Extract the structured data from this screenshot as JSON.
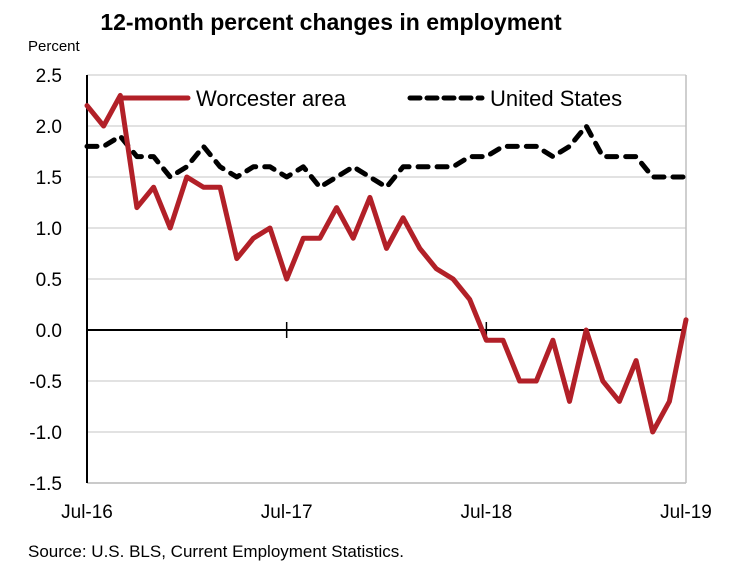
{
  "chart_data": {
    "type": "line",
    "title": "12-month percent changes in employment",
    "ylabel": "Percent",
    "xlabel": "",
    "ylim": [
      -1.5,
      2.5
    ],
    "yticks": [
      2.5,
      2.0,
      1.5,
      1.0,
      0.5,
      0.0,
      -0.5,
      -1.0,
      -1.5
    ],
    "ytick_labels": [
      "2.5",
      "2.0",
      "1.5",
      "1.0",
      "0.5",
      "0.0",
      "-0.5",
      "-1.0",
      "-1.5"
    ],
    "xtick_labels": [
      "Jul-16",
      "Jul-17",
      "Jul-18",
      "Jul-19"
    ],
    "grid": true,
    "legend_position": "top",
    "source": "Source: U.S. BLS, Current Employment Statistics.",
    "x": [
      "Jul-16",
      "Aug-16",
      "Sep-16",
      "Oct-16",
      "Nov-16",
      "Dec-16",
      "Jan-17",
      "Feb-17",
      "Mar-17",
      "Apr-17",
      "May-17",
      "Jun-17",
      "Jul-17",
      "Aug-17",
      "Sep-17",
      "Oct-17",
      "Nov-17",
      "Dec-17",
      "Jan-18",
      "Feb-18",
      "Mar-18",
      "Apr-18",
      "May-18",
      "Jun-18",
      "Jul-18",
      "Aug-18",
      "Sep-18",
      "Oct-18",
      "Nov-18",
      "Dec-18",
      "Jan-19",
      "Feb-19",
      "Mar-19",
      "Apr-19",
      "May-19",
      "Jun-19",
      "Jul-19"
    ],
    "series": [
      {
        "name": "Worcester area",
        "color": "#B22028",
        "style": "solid",
        "values": [
          2.2,
          2.0,
          2.3,
          1.2,
          1.4,
          1.0,
          1.5,
          1.4,
          1.4,
          0.7,
          0.9,
          1.0,
          0.5,
          0.9,
          0.9,
          1.2,
          0.9,
          1.3,
          0.8,
          1.1,
          0.8,
          0.6,
          0.5,
          0.3,
          -0.1,
          -0.1,
          -0.5,
          -0.5,
          -0.1,
          -0.7,
          0.0,
          -0.5,
          -0.7,
          -0.3,
          -1.0,
          -0.7,
          0.1
        ]
      },
      {
        "name": "United States",
        "color": "#000000",
        "style": "dashed",
        "values": [
          1.8,
          1.8,
          1.9,
          1.7,
          1.7,
          1.5,
          1.6,
          1.8,
          1.6,
          1.5,
          1.6,
          1.6,
          1.5,
          1.6,
          1.4,
          1.5,
          1.6,
          1.5,
          1.4,
          1.6,
          1.6,
          1.6,
          1.6,
          1.7,
          1.7,
          1.8,
          1.8,
          1.8,
          1.7,
          1.8,
          2.0,
          1.7,
          1.7,
          1.7,
          1.5,
          1.5,
          1.5
        ]
      }
    ]
  }
}
